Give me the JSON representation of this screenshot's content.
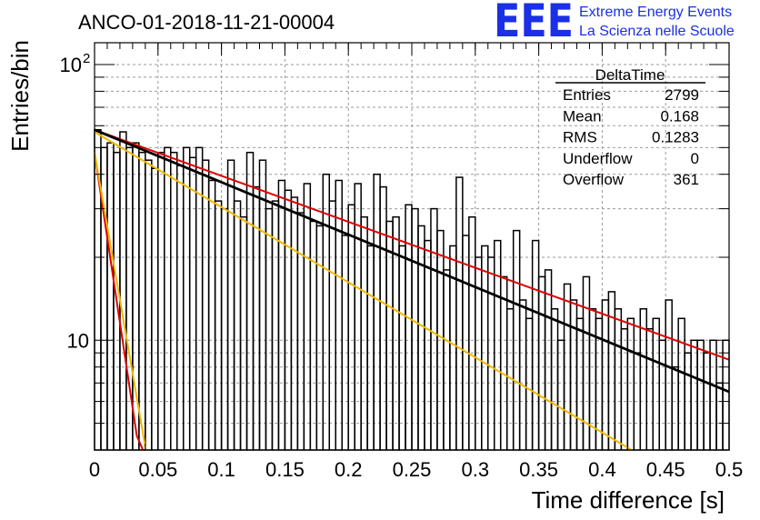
{
  "chart_data": {
    "type": "line",
    "title": "ANCO-01-2018-11-21-00004",
    "xlabel": "Time difference [s]",
    "ylabel": "Entries/bin",
    "xlim": [
      0,
      0.5
    ],
    "ylim": [
      4,
      120
    ],
    "yscale": "log",
    "grid": true,
    "x_ticks": [
      "0",
      "0.05",
      "0.1",
      "0.15",
      "0.2",
      "0.25",
      "0.3",
      "0.35",
      "0.4",
      "0.45",
      "0.5"
    ],
    "y_ticks": [
      {
        "value": 10,
        "label": "10"
      },
      {
        "value": 100,
        "label": "10",
        "exponent": "2"
      }
    ],
    "histogram": {
      "name": "DeltaTime",
      "bin_width": 0.005,
      "values": [
        58,
        50,
        52,
        48,
        57,
        50,
        52,
        48,
        45,
        42,
        48,
        50,
        48,
        43,
        50,
        46,
        50,
        45,
        38,
        32,
        30,
        45,
        32,
        28,
        48,
        36,
        45,
        30,
        32,
        38,
        35,
        33,
        29,
        37,
        27,
        26,
        40,
        32,
        38,
        24,
        31,
        37,
        28,
        22,
        40,
        36,
        27,
        28,
        22,
        31,
        30,
        26,
        23,
        30,
        25,
        18,
        22,
        39,
        24,
        28,
        20,
        22,
        20,
        23,
        17,
        13,
        25,
        14,
        12,
        23,
        17,
        18,
        13,
        10,
        16,
        14,
        12,
        17,
        13,
        12,
        14,
        15,
        13,
        11,
        12,
        9,
        13,
        11,
        12,
        10,
        14,
        8,
        12,
        9,
        10,
        10,
        9,
        10,
        7,
        10
      ]
    },
    "series": [
      {
        "color": "#e00000",
        "x": [
          0,
          0.5
        ],
        "y": [
          58,
          8.5
        ]
      },
      {
        "color": "#000000",
        "x": [
          0,
          0.5
        ],
        "y": [
          58,
          6.5
        ]
      },
      {
        "color": "#f0b800",
        "x": [
          0,
          0.4232
        ],
        "y": [
          57,
          4
        ]
      },
      {
        "color": "#e00000",
        "x": [
          0,
          0.0333
        ],
        "y": [
          48,
          4.5
        ]
      },
      {
        "color": "#e00000",
        "x": [
          0.0333,
          0.0381
        ],
        "y": [
          4.5,
          4
        ]
      },
      {
        "color": "#f0b800",
        "x": [
          0,
          0.0404
        ],
        "y": [
          48,
          4
        ]
      }
    ]
  },
  "logo": {
    "mark": "EEE",
    "line1": "Extreme Energy Events",
    "line2": "La Scienza nelle Scuole"
  },
  "stats": {
    "title": "DeltaTime",
    "rows": [
      {
        "label": "Entries",
        "value": "2799"
      },
      {
        "label": "Mean",
        "value": "0.168"
      },
      {
        "label": "RMS",
        "value": "0.1283"
      },
      {
        "label": "Underflow",
        "value": "0"
      },
      {
        "label": "Overflow",
        "value": "361"
      }
    ]
  }
}
